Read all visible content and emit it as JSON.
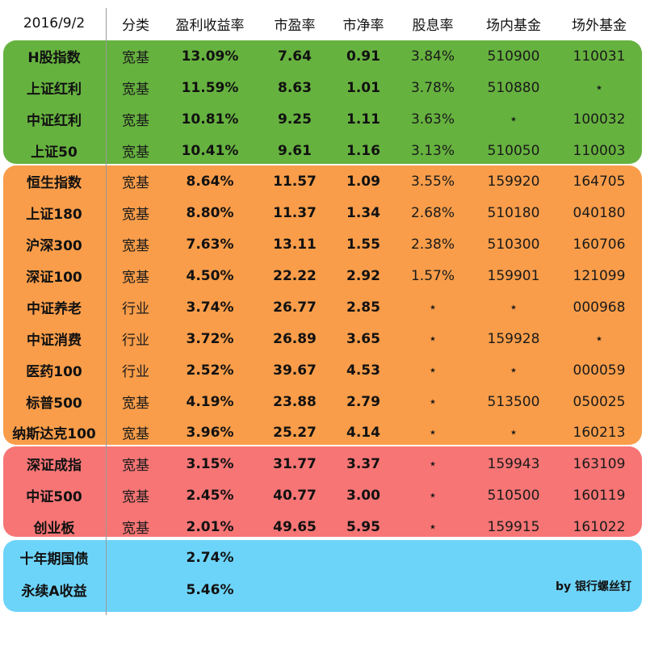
{
  "header": {
    "date": "2016/9/2",
    "type": "分类",
    "earnings_yield": "盈利收益率",
    "pe": "市盈率",
    "pb": "市净率",
    "dividend": "股息率",
    "onmarket": "场内基金",
    "offmarket": "场外基金"
  },
  "groups": {
    "green": {
      "color": "#66b23f"
    },
    "orange": {
      "color": "#f99d4a"
    },
    "red": {
      "color": "#f77575"
    },
    "blue": {
      "color": "#6dd4f9"
    }
  },
  "rows": [
    {
      "name": "H股指数",
      "type": "宽基",
      "earn": "13.09%",
      "pe": "7.64",
      "pb": "0.91",
      "div": "3.84%",
      "in": "510900",
      "out": "110031"
    },
    {
      "name": "上证红利",
      "type": "宽基",
      "earn": "11.59%",
      "pe": "8.63",
      "pb": "1.01",
      "div": "3.78%",
      "in": "510880",
      "out": "⋆"
    },
    {
      "name": "中证红利",
      "type": "宽基",
      "earn": "10.81%",
      "pe": "9.25",
      "pb": "1.11",
      "div": "3.63%",
      "in": "⋆",
      "out": "100032"
    },
    {
      "name": "上证50",
      "type": "宽基",
      "earn": "10.41%",
      "pe": "9.61",
      "pb": "1.16",
      "div": "3.13%",
      "in": "510050",
      "out": "110003"
    },
    {
      "name": "恒生指数",
      "type": "宽基",
      "earn": "8.64%",
      "pe": "11.57",
      "pb": "1.09",
      "div": "3.55%",
      "in": "159920",
      "out": "164705"
    },
    {
      "name": "上证180",
      "type": "宽基",
      "earn": "8.80%",
      "pe": "11.37",
      "pb": "1.34",
      "div": "2.68%",
      "in": "510180",
      "out": "040180"
    },
    {
      "name": "沪深300",
      "type": "宽基",
      "earn": "7.63%",
      "pe": "13.11",
      "pb": "1.55",
      "div": "2.38%",
      "in": "510300",
      "out": "160706"
    },
    {
      "name": "深证100",
      "type": "宽基",
      "earn": "4.50%",
      "pe": "22.22",
      "pb": "2.92",
      "div": "1.57%",
      "in": "159901",
      "out": "121099"
    },
    {
      "name": "中证养老",
      "type": "行业",
      "earn": "3.74%",
      "pe": "26.77",
      "pb": "2.85",
      "div": "⋆",
      "in": "⋆",
      "out": "000968"
    },
    {
      "name": "中证消费",
      "type": "行业",
      "earn": "3.72%",
      "pe": "26.89",
      "pb": "3.65",
      "div": "⋆",
      "in": "159928",
      "out": "⋆"
    },
    {
      "name": "医药100",
      "type": "行业",
      "earn": "2.52%",
      "pe": "39.67",
      "pb": "4.53",
      "div": "⋆",
      "in": "⋆",
      "out": "000059"
    },
    {
      "name": "标普500",
      "type": "宽基",
      "earn": "4.19%",
      "pe": "23.88",
      "pb": "2.79",
      "div": "⋆",
      "in": "513500",
      "out": "050025"
    },
    {
      "name": "纳斯达克100",
      "type": "宽基",
      "earn": "3.96%",
      "pe": "25.27",
      "pb": "4.14",
      "div": "⋆",
      "in": "⋆",
      "out": "160213"
    },
    {
      "name": "深证成指",
      "type": "宽基",
      "earn": "3.15%",
      "pe": "31.77",
      "pb": "3.37",
      "div": "⋆",
      "in": "159943",
      "out": "163109"
    },
    {
      "name": "中证500",
      "type": "宽基",
      "earn": "2.45%",
      "pe": "40.77",
      "pb": "3.00",
      "div": "⋆",
      "in": "510500",
      "out": "160119"
    },
    {
      "name": "创业板",
      "type": "宽基",
      "earn": "2.01%",
      "pe": "49.65",
      "pb": "5.95",
      "div": "⋆",
      "in": "159915",
      "out": "161022"
    },
    {
      "name": "十年期国债",
      "type": "",
      "earn": "2.74%",
      "pe": "",
      "pb": "",
      "div": "",
      "in": "",
      "out": ""
    },
    {
      "name": "永续A收益",
      "type": "",
      "earn": "5.46%",
      "pe": "",
      "pb": "",
      "div": "",
      "in": "",
      "out": ""
    }
  ],
  "credit": "by 银行螺丝钉"
}
